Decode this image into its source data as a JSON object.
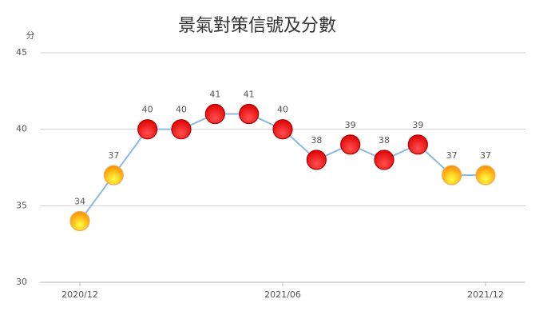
{
  "chart_data": {
    "type": "line",
    "title": "景氣對策信號及分數",
    "y_label": "分",
    "categories": [
      "2020/12",
      null,
      null,
      null,
      null,
      null,
      "2021/06",
      null,
      null,
      null,
      null,
      null,
      "2021/12"
    ],
    "series": [
      {
        "color": "#8bb8e0",
        "values": [
          34,
          37,
          40,
          40,
          41,
          41,
          40,
          38,
          39,
          38,
          39,
          37,
          37
        ],
        "marker_colors": [
          "#ffd000",
          "#ffd000",
          "#ff0000",
          "#ff0000",
          "#ff0000",
          "#ff0000",
          "#ff0000",
          "#ff0000",
          "#ff0000",
          "#ff0000",
          "#ff0000",
          "#ffd000",
          "#ffd000"
        ]
      }
    ],
    "ylim": [
      30,
      45
    ],
    "yticks": [
      30,
      35,
      40,
      45
    ],
    "grid": true
  }
}
